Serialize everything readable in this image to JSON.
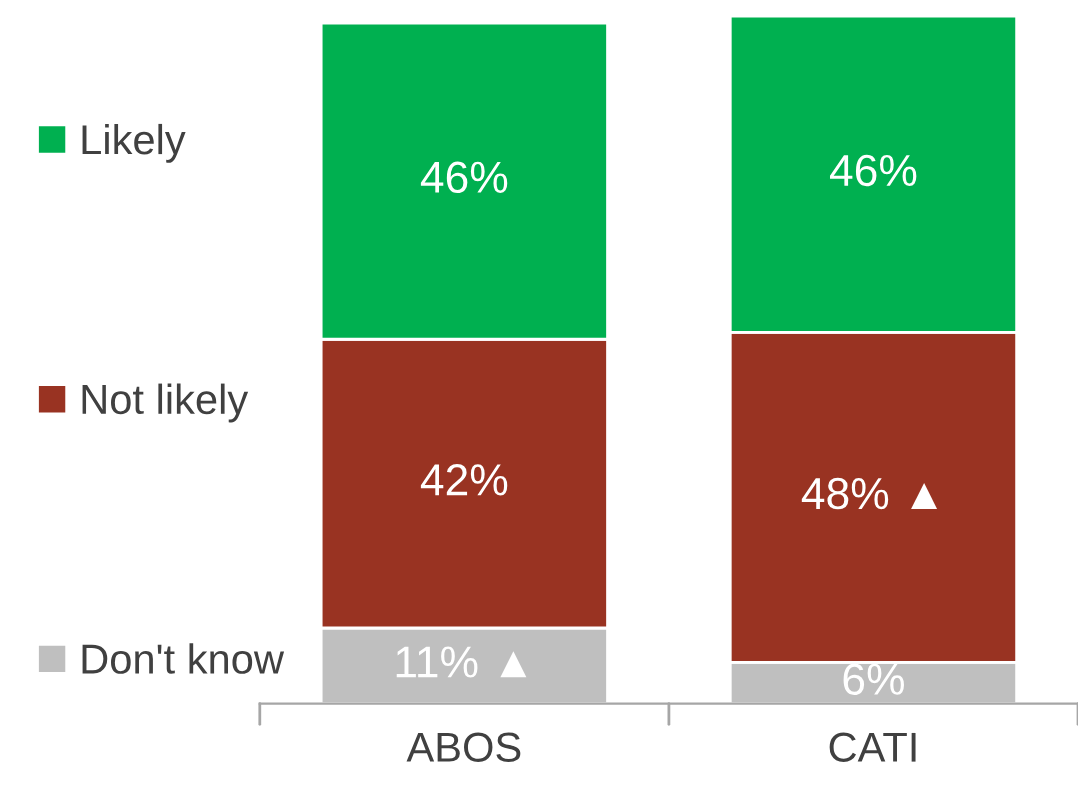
{
  "chart_data": {
    "type": "bar",
    "stacked": true,
    "categories": [
      "ABOS",
      "CATI"
    ],
    "series": [
      {
        "name": "Don't know",
        "color": "#bfbfbf",
        "values": [
          11,
          6
        ],
        "value_labels": [
          "11% ▲",
          "6%"
        ]
      },
      {
        "name": "Not likely",
        "color": "#993322",
        "values": [
          42,
          48
        ],
        "value_labels": [
          "42%",
          "48% ▲"
        ]
      },
      {
        "name": "Likely",
        "color": "#00b050",
        "values": [
          46,
          46
        ],
        "value_labels": [
          "46%",
          "46%"
        ]
      }
    ],
    "legend": "left",
    "tick_labels": "x"
  }
}
